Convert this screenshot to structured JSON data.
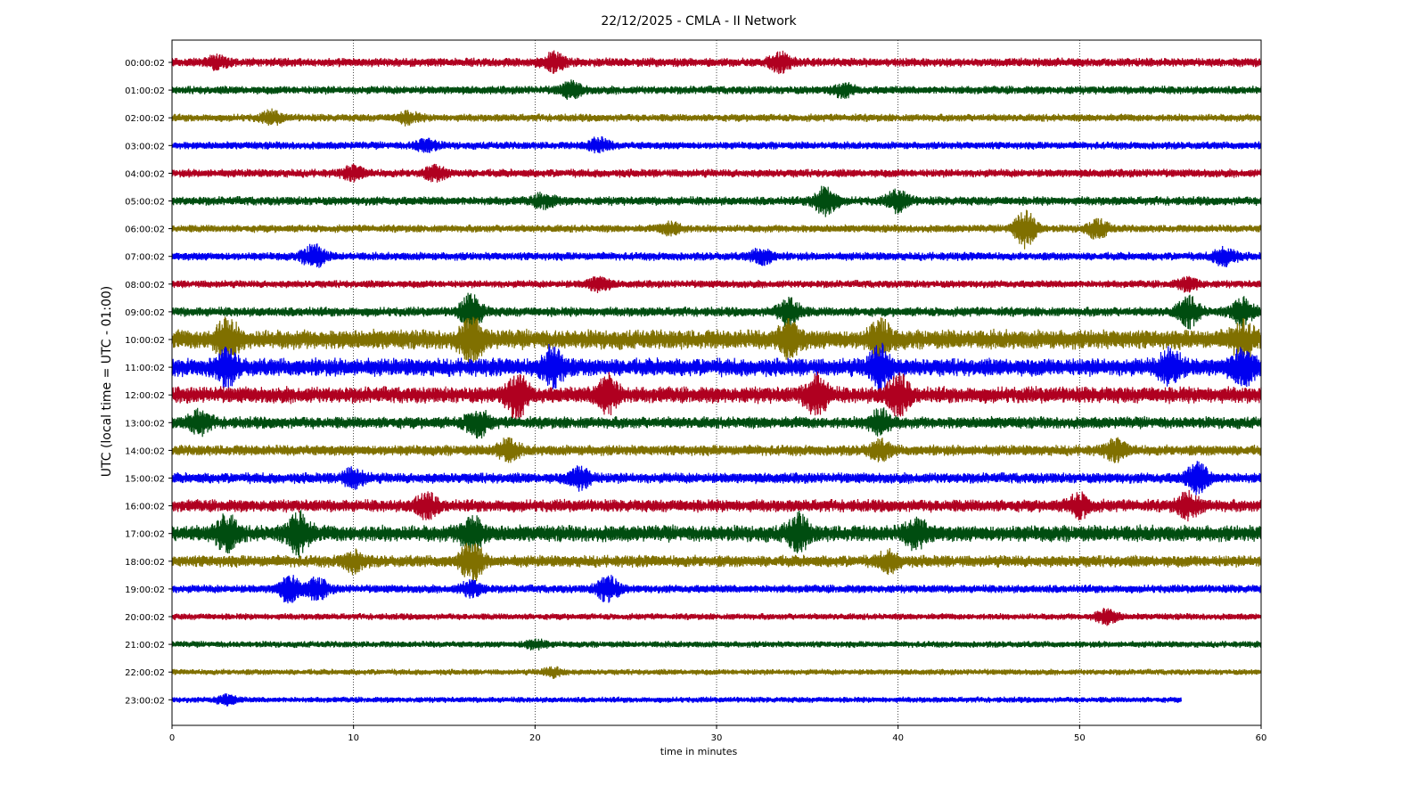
{
  "chart_data": {
    "type": "line",
    "title": "22/12/2025 - CMLA - II Network",
    "xlabel": "time in minutes",
    "ylabel": "UTC (local time = UTC - 01:00)",
    "xlim": [
      0,
      60
    ],
    "xticks": [
      "0",
      "10",
      "20",
      "30",
      "40",
      "50",
      "60"
    ],
    "grid": "vertical dotted lines at 10-minute intervals",
    "legend": "none",
    "colors": [
      "#b00020",
      "#004d10",
      "#807000",
      "#0000f0"
    ],
    "rows": [
      {
        "label": "00:00:02",
        "amp": 0.3,
        "bursts": [
          [
            21,
            0.6
          ],
          [
            33.5,
            0.6
          ],
          [
            2.5,
            0.35
          ]
        ],
        "end": 60
      },
      {
        "label": "01:00:02",
        "amp": 0.28,
        "bursts": [
          [
            22,
            0.5
          ],
          [
            37,
            0.4
          ]
        ],
        "end": 60
      },
      {
        "label": "02:00:02",
        "amp": 0.26,
        "bursts": [
          [
            5.5,
            0.4
          ],
          [
            13,
            0.35
          ]
        ],
        "end": 60
      },
      {
        "label": "03:00:02",
        "amp": 0.26,
        "bursts": [
          [
            14,
            0.4
          ],
          [
            23.5,
            0.45
          ]
        ],
        "end": 60
      },
      {
        "label": "04:00:02",
        "amp": 0.28,
        "bursts": [
          [
            10,
            0.4
          ],
          [
            14.5,
            0.45
          ]
        ],
        "end": 60
      },
      {
        "label": "05:00:02",
        "amp": 0.3,
        "bursts": [
          [
            36,
            1.0
          ],
          [
            40,
            0.7
          ],
          [
            20.5,
            0.45
          ]
        ],
        "end": 60
      },
      {
        "label": "06:00:02",
        "amp": 0.26,
        "bursts": [
          [
            47,
            1.3
          ],
          [
            51,
            0.6
          ],
          [
            27.5,
            0.4
          ]
        ],
        "end": 60
      },
      {
        "label": "07:00:02",
        "amp": 0.28,
        "bursts": [
          [
            7.8,
            0.8
          ],
          [
            32.5,
            0.5
          ],
          [
            58,
            0.6
          ]
        ],
        "end": 60
      },
      {
        "label": "08:00:02",
        "amp": 0.26,
        "bursts": [
          [
            23.5,
            0.45
          ],
          [
            56,
            0.4
          ]
        ],
        "end": 60
      },
      {
        "label": "09:00:02",
        "amp": 0.32,
        "bursts": [
          [
            16.5,
            1.2
          ],
          [
            34,
            0.9
          ],
          [
            56,
            1.0
          ],
          [
            59,
            0.9
          ]
        ],
        "end": 60
      },
      {
        "label": "10:00:02",
        "amp": 0.65,
        "bursts": [
          [
            3,
            1.3
          ],
          [
            16.5,
            1.3
          ],
          [
            34,
            1.0
          ],
          [
            39,
            1.1
          ],
          [
            59,
            1.0
          ]
        ],
        "end": 60
      },
      {
        "label": "11:00:02",
        "amp": 0.6,
        "bursts": [
          [
            3,
            1.0
          ],
          [
            21,
            1.2
          ],
          [
            39,
            1.4
          ],
          [
            55,
            1.1
          ],
          [
            59,
            1.1
          ]
        ],
        "end": 60
      },
      {
        "label": "12:00:02",
        "amp": 0.55,
        "bursts": [
          [
            19,
            1.4
          ],
          [
            24,
            1.2
          ],
          [
            35.5,
            1.3
          ],
          [
            40,
            1.3
          ]
        ],
        "end": 60
      },
      {
        "label": "13:00:02",
        "amp": 0.4,
        "bursts": [
          [
            1.5,
            0.7
          ],
          [
            16.8,
            0.9
          ],
          [
            39,
            0.8
          ]
        ],
        "end": 60
      },
      {
        "label": "14:00:02",
        "amp": 0.36,
        "bursts": [
          [
            18.5,
            0.7
          ],
          [
            39,
            0.6
          ],
          [
            52,
            0.6
          ]
        ],
        "end": 60
      },
      {
        "label": "15:00:02",
        "amp": 0.36,
        "bursts": [
          [
            10,
            0.6
          ],
          [
            22.5,
            0.7
          ],
          [
            56.5,
            1.0
          ]
        ],
        "end": 60
      },
      {
        "label": "16:00:02",
        "amp": 0.42,
        "bursts": [
          [
            14,
            0.8
          ],
          [
            50,
            0.7
          ],
          [
            56,
            0.8
          ]
        ],
        "end": 60
      },
      {
        "label": "17:00:02",
        "amp": 0.55,
        "bursts": [
          [
            3,
            1.1
          ],
          [
            7,
            1.3
          ],
          [
            16.5,
            1.1
          ],
          [
            34.5,
            1.1
          ],
          [
            41,
            0.9
          ]
        ],
        "end": 60
      },
      {
        "label": "18:00:02",
        "amp": 0.4,
        "bursts": [
          [
            16.5,
            1.3
          ],
          [
            10,
            0.6
          ],
          [
            39.5,
            0.6
          ]
        ],
        "end": 60
      },
      {
        "label": "19:00:02",
        "amp": 0.28,
        "bursts": [
          [
            6.5,
            0.9
          ],
          [
            8,
            0.7
          ],
          [
            24,
            0.9
          ],
          [
            16.5,
            0.5
          ]
        ],
        "end": 60
      },
      {
        "label": "20:00:02",
        "amp": 0.22,
        "bursts": [
          [
            51.5,
            0.5
          ]
        ],
        "end": 60
      },
      {
        "label": "21:00:02",
        "amp": 0.22,
        "bursts": [
          [
            20,
            0.3
          ]
        ],
        "end": 60
      },
      {
        "label": "22:00:02",
        "amp": 0.2,
        "bursts": [
          [
            21,
            0.3
          ]
        ],
        "end": 60
      },
      {
        "label": "23:00:02",
        "amp": 0.2,
        "bursts": [
          [
            3,
            0.3
          ]
        ],
        "end": 55.6
      }
    ]
  }
}
